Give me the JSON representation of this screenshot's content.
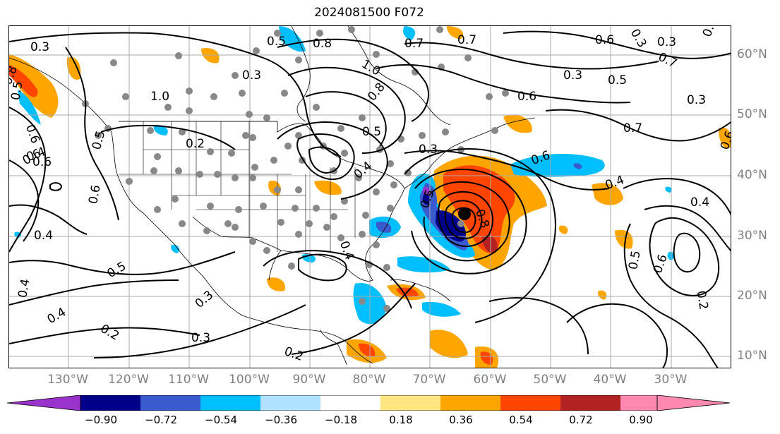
{
  "title": "2024081500 F072",
  "lon_labels": [
    "130°W",
    "120°W",
    "110°W",
    "100°W",
    "90°W",
    "80°W",
    "70°W",
    "60°W",
    "50°W",
    "40°W",
    "30°W"
  ],
  "lat_labels": [
    "60°N",
    "50°N",
    "40°N",
    "30°N",
    "20°N",
    "10°N"
  ],
  "contour_labels": [
    {
      "text": "0.3"
    },
    {
      "text": "0.5"
    },
    {
      "text": "0.8"
    },
    {
      "text": "1.0"
    },
    {
      "text": "0.6"
    },
    {
      "text": "0.4"
    },
    {
      "text": "0.6"
    },
    {
      "text": "0.3"
    },
    {
      "text": "0.5"
    },
    {
      "text": "0.8"
    },
    {
      "text": "1.0"
    },
    {
      "text": "0.8"
    },
    {
      "text": "0.7"
    },
    {
      "text": "0.7"
    },
    {
      "text": "0.6"
    },
    {
      "text": "0.3"
    },
    {
      "text": "0.5"
    },
    {
      "text": "0.3"
    },
    {
      "text": "0.7"
    },
    {
      "text": "0.6"
    },
    {
      "text": "0.2"
    },
    {
      "text": "0.5"
    },
    {
      "text": "0.6"
    },
    {
      "text": "0.3"
    },
    {
      "text": "0.5"
    },
    {
      "text": "0.6"
    },
    {
      "text": "0.4"
    },
    {
      "text": "0.4"
    },
    {
      "text": "0.5"
    },
    {
      "text": "0.4"
    },
    {
      "text": "0.4"
    },
    {
      "text": "0.3"
    },
    {
      "text": "0.2"
    },
    {
      "text": "0.3"
    },
    {
      "text": "0.2"
    },
    {
      "text": "0.4"
    },
    {
      "text": "0.5"
    },
    {
      "text": "0.8"
    },
    {
      "text": "0.4"
    },
    {
      "text": "0.4"
    },
    {
      "text": "0.5"
    },
    {
      "text": "0.6"
    },
    {
      "text": "0.2"
    },
    {
      "text": "0.6"
    },
    {
      "text": "0.5"
    },
    {
      "text": "0.3"
    },
    {
      "text": "0.7"
    },
    {
      "text": "0.6"
    },
    {
      "text": "0.3"
    }
  ],
  "colorbar": {
    "ticks": [
      "−0.90",
      "−0.72",
      "−0.54",
      "−0.36",
      "−0.18",
      "0.18",
      "0.36",
      "0.54",
      "0.72",
      "0.90"
    ],
    "colors": [
      "#9933cc",
      "#00008b",
      "#3a5bcd",
      "#00bfff",
      "#b0e2ff",
      "#ffffff",
      "#ffe680",
      "#ffa500",
      "#ff4500",
      "#b22222",
      "#ff88b0"
    ]
  },
  "colors": {
    "gray_label": "#808080",
    "station_dot": "#888888",
    "grid": "#aaaaaa"
  }
}
